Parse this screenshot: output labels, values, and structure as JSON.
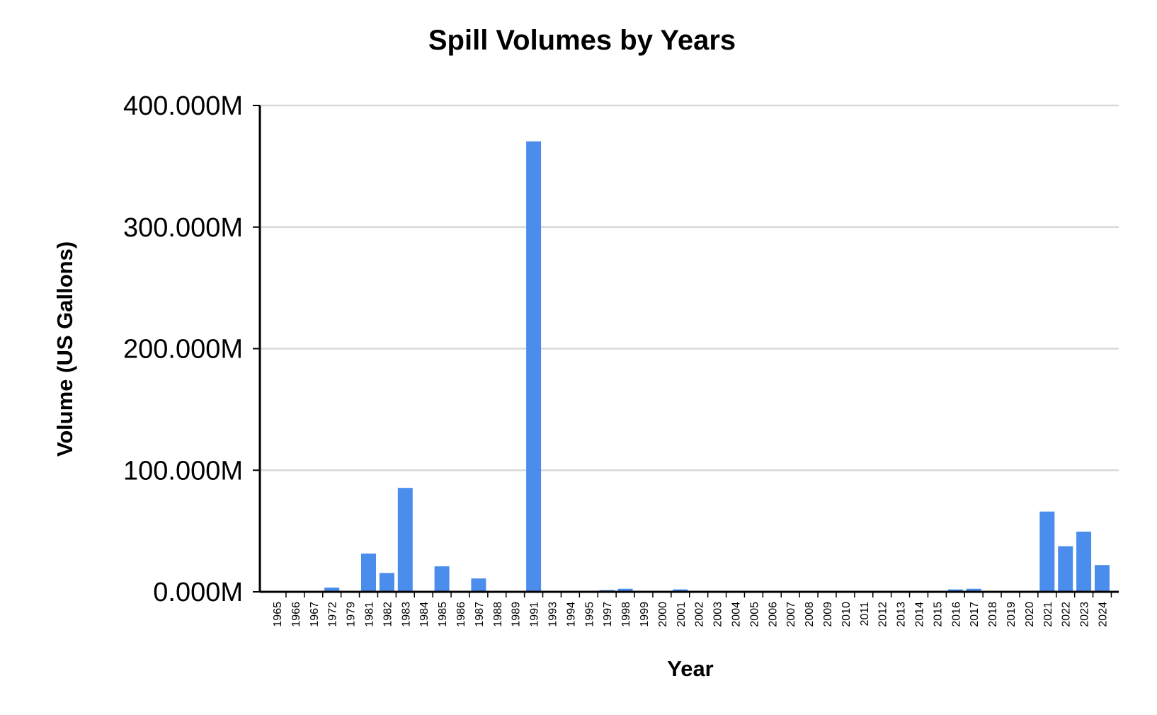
{
  "chart_data": {
    "type": "bar",
    "title": "Spill Volumes by Years",
    "xlabel": "Year",
    "ylabel": "Volume (US Gallons)",
    "ylim": [
      0,
      400
    ],
    "yunit": "million US gallons",
    "ytick_values": [
      0,
      100,
      200,
      300,
      400
    ],
    "ytick_labels": [
      "0.000M",
      "100.000M",
      "200.000M",
      "300.000M",
      "400.000M"
    ],
    "grid": "horizontal",
    "bar_color": "#4a8ded",
    "categories": [
      "1965",
      "1966",
      "1967",
      "1972",
      "1979",
      "1981",
      "1982",
      "1983",
      "1984",
      "1985",
      "1986",
      "1987",
      "1988",
      "1989",
      "1991",
      "1993",
      "1994",
      "1995",
      "1997",
      "1998",
      "1999",
      "2000",
      "2001",
      "2002",
      "2003",
      "2004",
      "2005",
      "2006",
      "2007",
      "2008",
      "2009",
      "2010",
      "2011",
      "2012",
      "2013",
      "2014",
      "2015",
      "2016",
      "2017",
      "2018",
      "2019",
      "2020",
      "2021",
      "2022",
      "2023",
      "2024"
    ],
    "values": [
      0.1,
      0.1,
      0.1,
      3.5,
      0.3,
      31.5,
      15.5,
      85.5,
      0.2,
      21,
      0.3,
      11,
      0.8,
      0.5,
      370.5,
      0.1,
      0.1,
      0.1,
      1.5,
      2.5,
      0.2,
      0.1,
      2.0,
      0.1,
      0.1,
      0.1,
      0.1,
      0.1,
      0.1,
      0.1,
      0.1,
      0.1,
      0.1,
      0.1,
      0.1,
      0.1,
      0.1,
      2.0,
      2.5,
      0.2,
      0.2,
      0.2,
      66,
      37.5,
      49.5,
      22
    ]
  }
}
